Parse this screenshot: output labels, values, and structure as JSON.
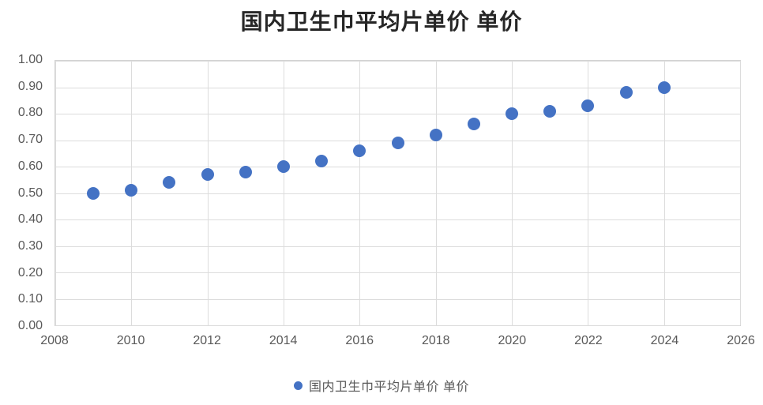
{
  "title": "国内卫生巾平均片单价 单价",
  "legend": {
    "label": "国内卫生巾平均片单价 单价"
  },
  "colors": {
    "point": "#4472C4",
    "grid": "#dcdcdc",
    "plot_border": "#d3d3d3",
    "axis_text": "#595959",
    "title_text": "#262626"
  },
  "chart_data": {
    "type": "scatter",
    "title": "国内卫生巾平均片单价 单价",
    "series_name": "国内卫生巾平均片单价 单价",
    "x": [
      2009,
      2010,
      2011,
      2012,
      2013,
      2014,
      2015,
      2016,
      2017,
      2018,
      2019,
      2020,
      2021,
      2022,
      2023,
      2024
    ],
    "y": [
      0.5,
      0.51,
      0.54,
      0.57,
      0.58,
      0.6,
      0.62,
      0.66,
      0.69,
      0.72,
      0.76,
      0.8,
      0.81,
      0.83,
      0.88,
      0.9
    ],
    "xlabel": "",
    "ylabel": "",
    "xlim": [
      2008,
      2026
    ],
    "ylim": [
      0.0,
      1.0
    ],
    "x_ticks": [
      2008,
      2010,
      2012,
      2014,
      2016,
      2018,
      2020,
      2022,
      2024,
      2026
    ],
    "x_tick_labels": [
      "2008",
      "2010",
      "2012",
      "2014",
      "2016",
      "2018",
      "2020",
      "2022",
      "2024",
      "2026"
    ],
    "y_ticks": [
      0.0,
      0.1,
      0.2,
      0.3,
      0.4,
      0.5,
      0.6,
      0.7,
      0.8,
      0.9,
      1.0
    ],
    "y_tick_labels": [
      "0.00",
      "0.10",
      "0.20",
      "0.30",
      "0.40",
      "0.50",
      "0.60",
      "0.70",
      "0.80",
      "0.90",
      "1.00"
    ],
    "grid": true,
    "legend_position": "bottom"
  }
}
